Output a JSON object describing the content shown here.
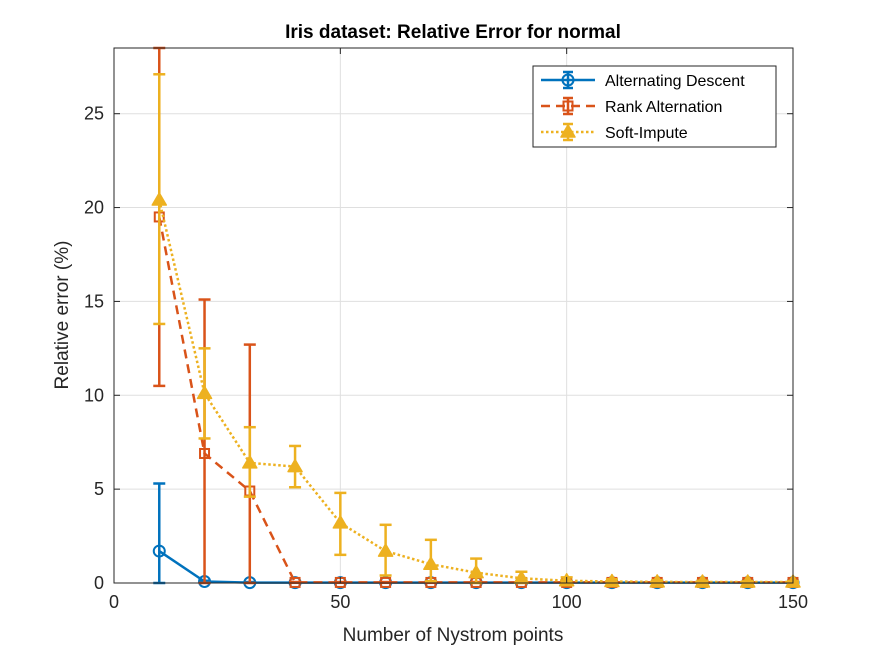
{
  "chart_data": {
    "type": "line",
    "title": "Iris dataset: Relative Error for normal",
    "xlabel": "Number of Nystrom points",
    "ylabel": "Relative error (%)",
    "xlim": [
      0,
      150
    ],
    "ylim": [
      0,
      28.5
    ],
    "xticks": [
      0,
      50,
      100,
      150
    ],
    "yticks": [
      0,
      5,
      10,
      15,
      20,
      25
    ],
    "grid": true,
    "legend_position": "top-right",
    "x": [
      10,
      20,
      30,
      40,
      50,
      60,
      70,
      80,
      90,
      100,
      110,
      120,
      130,
      140,
      150
    ],
    "series": [
      {
        "name": "Alternating Descent",
        "color": "#0072BD",
        "line_style": "solid",
        "marker": "circle",
        "values": [
          1.7,
          0.08,
          0.02,
          0.02,
          0.02,
          0.02,
          0.02,
          0.02,
          0.02,
          0.02,
          0.02,
          0.02,
          0.02,
          0.02,
          0.02
        ],
        "err_low": [
          0,
          0.05,
          0.02,
          0.02,
          0.02,
          0.02,
          0.02,
          0.02,
          0.02,
          0.02,
          0.02,
          0.02,
          0.02,
          0.02,
          0.02
        ],
        "err_high": [
          5.3,
          0.12,
          0.05,
          0.03,
          0.03,
          0.03,
          0.03,
          0.03,
          0.03,
          0.03,
          0.03,
          0.03,
          0.03,
          0.03,
          0.03
        ]
      },
      {
        "name": "Rank Alternation",
        "color": "#D95319",
        "line_style": "dashed",
        "marker": "square",
        "values": [
          19.5,
          6.9,
          4.9,
          0.03,
          0.03,
          0.03,
          0.03,
          0.03,
          0.03,
          0.03,
          0.03,
          0.03,
          0.03,
          0.03,
          0.03
        ],
        "err_low": [
          10.5,
          0,
          0,
          0.01,
          0.01,
          0.01,
          0.01,
          0.01,
          0.01,
          0.01,
          0.01,
          0.01,
          0.01,
          0.01,
          0.01
        ],
        "err_high": [
          28.5,
          15.1,
          12.7,
          0.05,
          0.05,
          0.05,
          0.05,
          0.05,
          0.05,
          0.05,
          0.05,
          0.05,
          0.05,
          0.05,
          0.05
        ]
      },
      {
        "name": "Soft-Impute",
        "color": "#EDB120",
        "line_style": "dotted",
        "marker": "triangle",
        "values": [
          20.4,
          10.1,
          6.4,
          6.2,
          3.2,
          1.7,
          1.0,
          0.55,
          0.25,
          0.12,
          0.08,
          0.06,
          0.05,
          0.05,
          0.05
        ],
        "err_low": [
          13.8,
          7.7,
          4.6,
          5.1,
          1.5,
          0.4,
          0.1,
          0.0,
          0.0,
          0.0,
          0.0,
          0.0,
          0.0,
          0.0,
          0.0
        ],
        "err_high": [
          27.1,
          12.5,
          8.3,
          7.3,
          4.8,
          3.1,
          2.3,
          1.3,
          0.6,
          0.3,
          0.2,
          0.15,
          0.12,
          0.1,
          0.1
        ]
      }
    ]
  }
}
